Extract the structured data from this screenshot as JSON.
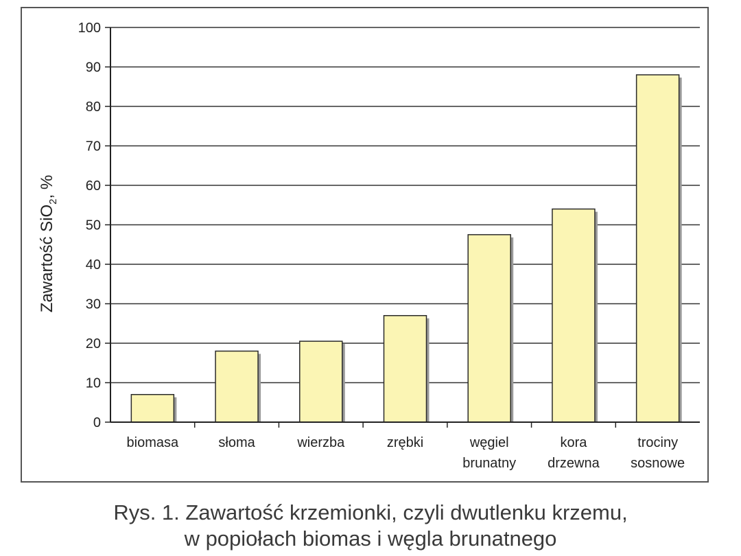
{
  "chart_data": {
    "type": "bar",
    "categories": [
      [
        "biomasa"
      ],
      [
        "słoma"
      ],
      [
        "wierzba"
      ],
      [
        "zrębki"
      ],
      [
        "węgiel",
        "brunatny"
      ],
      [
        "kora",
        "drzewna"
      ],
      [
        "trociny",
        "sosnowe"
      ]
    ],
    "values": [
      7,
      18,
      20.5,
      27,
      47.5,
      54,
      88
    ],
    "ylabel_main": "Zawartość SiO",
    "ylabel_sub": "2",
    "ylabel_suffix": ", %",
    "ylim": [
      0,
      100
    ],
    "yticks": [
      "0",
      "10",
      "20",
      "30",
      "40",
      "50",
      "60",
      "70",
      "80",
      "90",
      "100"
    ],
    "grid": true,
    "colors": {
      "bar_fill": "#fbf5b4",
      "bar_stroke": "#2a2a2a",
      "grid": "#333333"
    }
  },
  "caption": {
    "line1": "Rys. 1. Zawartość krzemionki, czyli dwutlenku krzemu,",
    "line2": "w popiołach biomas i węgla brunatnego"
  }
}
